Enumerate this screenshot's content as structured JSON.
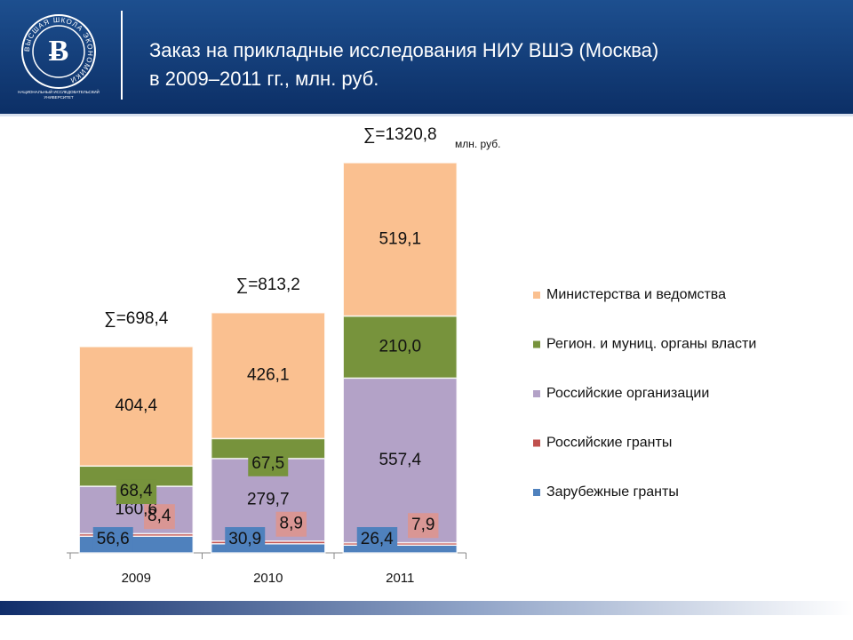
{
  "header": {
    "logo_ring": "ВЫСШАЯ ШКОЛА ЭКОНОМИКИ",
    "logo_caption": [
      "НАЦИОНАЛЬНЫЙ ИССЛЕДОВАТЕЛЬСКИЙ",
      "УНИВЕРСИТЕТ"
    ]
  },
  "chart_data": {
    "type": "stacked_bar",
    "title_lines": [
      "Заказ на прикладные исследования НИУ ВШЭ (Москва)",
      "в 2009–2011 гг., млн. руб."
    ],
    "unit_label": "млн. руб.",
    "categories": [
      "2009",
      "2010",
      "2011"
    ],
    "total_labels": [
      "∑=698,4",
      "∑=813,2",
      "∑=1320,8"
    ],
    "ylim": [
      0,
      1320.8
    ],
    "legend_position": "right",
    "series": [
      {
        "name": "Зарубежные гранты",
        "color": "#4f81bd",
        "values": [
          56.6,
          30.9,
          26.4
        ],
        "value_labels": [
          "56,6",
          "30,9",
          "26,4"
        ]
      },
      {
        "name": "Российские гранты",
        "color": "#c0504d",
        "box_color": "#d99694",
        "values": [
          8.4,
          8.9,
          7.9
        ],
        "value_labels": [
          "8,4",
          "8,9",
          "7,9"
        ]
      },
      {
        "name": "Российские организации",
        "color": "#b3a2c7",
        "values": [
          160.6,
          279.7,
          557.4
        ],
        "value_labels": [
          "160,6",
          "279,7",
          "557,4"
        ]
      },
      {
        "name": "Регион. и муниц. органы власти",
        "color": "#77933c",
        "values": [
          68.4,
          67.5,
          210.0
        ],
        "value_labels": [
          "68,4",
          "67,5",
          "210,0"
        ]
      },
      {
        "name": "Министерства и ведомства",
        "color": "#fac090",
        "values": [
          404.4,
          426.1,
          519.1
        ],
        "value_labels": [
          "404,4",
          "426,1",
          "519,1"
        ]
      }
    ]
  }
}
